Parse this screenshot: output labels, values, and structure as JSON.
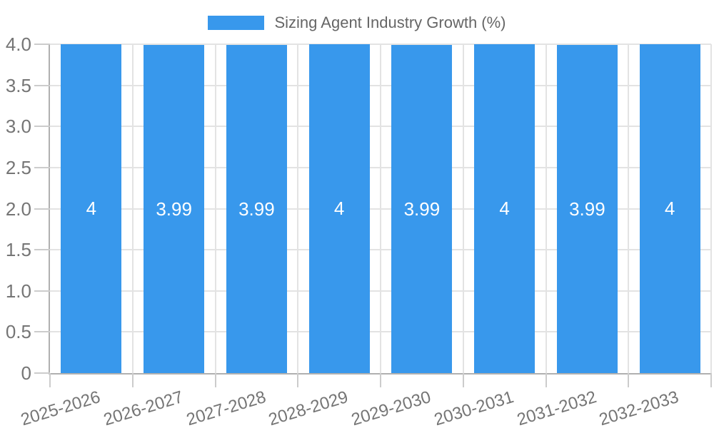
{
  "chart_data": {
    "type": "bar",
    "title": "Sizing Agent Industry Growth (%)",
    "legend": {
      "position": "top",
      "label": "Sizing Agent Industry Growth (%)"
    },
    "categories": [
      "2025-2026",
      "2026-2027",
      "2027-2028",
      "2028-2029",
      "2029-2030",
      "2030-2031",
      "2031-2032",
      "2032-2033"
    ],
    "values": [
      4,
      3.99,
      3.99,
      4,
      3.99,
      4,
      3.99,
      4
    ],
    "bar_value_labels": [
      "4",
      "3.99",
      "3.99",
      "4",
      "3.99",
      "4",
      "3.99",
      "4"
    ],
    "xlabel": "",
    "ylabel": "",
    "ylim": [
      0,
      4
    ],
    "yticks": [
      {
        "value": 0,
        "label": "0"
      },
      {
        "value": 0.5,
        "label": "0.5"
      },
      {
        "value": 1,
        "label": "1.0"
      },
      {
        "value": 1.5,
        "label": "1.5"
      },
      {
        "value": 2,
        "label": "2.0"
      },
      {
        "value": 2.5,
        "label": "2.5"
      },
      {
        "value": 3,
        "label": "3.0"
      },
      {
        "value": 3.5,
        "label": "3.5"
      },
      {
        "value": 4,
        "label": "4.0"
      }
    ],
    "grid": true,
    "colors": {
      "bar": "#3898EC",
      "bar_label_text": "#FFFFFF",
      "gridline": "#E3E3E3",
      "tick_mark": "#CCCCCC",
      "axis_line": "#B0B0B0",
      "tick_text": "#757575",
      "legend_text": "#666666",
      "background": "#FFFFFF"
    }
  }
}
